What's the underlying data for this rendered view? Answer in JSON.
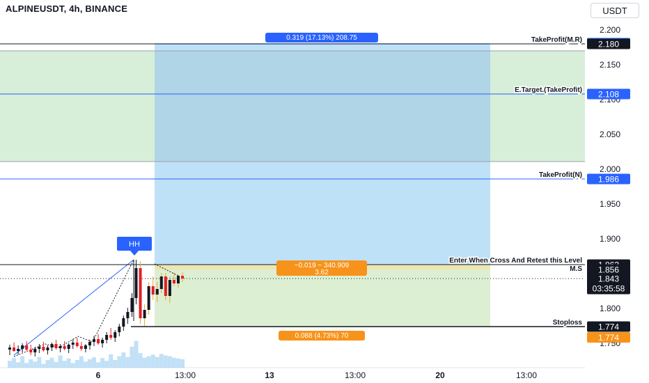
{
  "header": {
    "title": "ALPINEUSDT, 4h, BINANCE",
    "currency": "USDT"
  },
  "chart_data": {
    "type": "candlestick",
    "symbol": "ALPINEUSDT",
    "interval": "4h",
    "exchange": "BINANCE",
    "ylim": [
      1.725,
      2.205
    ],
    "y_ticks": [
      "2.200",
      "2.150",
      "2.100",
      "2.050",
      "2.000",
      "1.950",
      "1.900",
      "1.850",
      "1.800",
      "1.750"
    ],
    "x_ticks": [
      "6",
      "13:00",
      "13",
      "13:00",
      "20",
      "13:00"
    ],
    "levels": [
      {
        "label": "TakeProfit(M.R)",
        "value": 2.18,
        "price_label": "2.180",
        "color": "#131722"
      },
      {
        "label": "E.Target.(TakeProfit)",
        "value": 2.108,
        "price_label": "2.108",
        "color": "#2962ff"
      },
      {
        "label": "TakeProfit(N)",
        "value": 1.986,
        "price_label": "1.986",
        "color": "#2962ff"
      },
      {
        "label": "Enter When Cross And Retest this Level",
        "value": 1.863,
        "price_label": "1.863",
        "color": "#131722"
      },
      {
        "label": "M.S",
        "value": 1.856,
        "price_label": "1.856",
        "color": "#131722"
      },
      {
        "label": "Stoploss",
        "value": 1.774,
        "price_label": "1.774",
        "color": "#131722"
      }
    ],
    "price_tags": [
      {
        "text": "2.181",
        "value": 2.181,
        "color": "#2962ff"
      },
      {
        "text": "1.862",
        "value": 1.862,
        "color": "#131722"
      },
      {
        "text": "1.774",
        "value": 1.774,
        "color": "#f7931a"
      }
    ],
    "last_price": {
      "value": 1.843,
      "text": "1.843",
      "countdown": "03:35:58"
    },
    "zones": [
      {
        "name": "green-target-zone",
        "from": 2.011,
        "to": 2.17,
        "color": "#d7efd9"
      },
      {
        "name": "blue-profit-zone",
        "from": 1.863,
        "to": 2.181,
        "color": "#b3dcf7"
      },
      {
        "name": "green-risk-zone",
        "from": 1.774,
        "to": 1.863,
        "color": "#dcefd3"
      }
    ],
    "labels": {
      "profit": "0.319 (17.13%) 208.75",
      "entry_line1": "−0.019 ~ 340.909",
      "entry_line2": "3.62",
      "stop": "0.088 (4.73%) 70",
      "hh": "HH"
    },
    "candles": [
      {
        "o": 1.741,
        "h": 1.748,
        "l": 1.733,
        "c": 1.744
      },
      {
        "o": 1.744,
        "h": 1.751,
        "l": 1.738,
        "c": 1.739
      },
      {
        "o": 1.739,
        "h": 1.747,
        "l": 1.734,
        "c": 1.742
      },
      {
        "o": 1.742,
        "h": 1.75,
        "l": 1.737,
        "c": 1.747
      },
      {
        "o": 1.747,
        "h": 1.753,
        "l": 1.739,
        "c": 1.741
      },
      {
        "o": 1.741,
        "h": 1.748,
        "l": 1.733,
        "c": 1.737
      },
      {
        "o": 1.737,
        "h": 1.745,
        "l": 1.731,
        "c": 1.742
      },
      {
        "o": 1.742,
        "h": 1.749,
        "l": 1.736,
        "c": 1.745
      },
      {
        "o": 1.745,
        "h": 1.752,
        "l": 1.738,
        "c": 1.74
      },
      {
        "o": 1.74,
        "h": 1.747,
        "l": 1.734,
        "c": 1.744
      },
      {
        "o": 1.744,
        "h": 1.751,
        "l": 1.739,
        "c": 1.749
      },
      {
        "o": 1.749,
        "h": 1.755,
        "l": 1.741,
        "c": 1.743
      },
      {
        "o": 1.743,
        "h": 1.749,
        "l": 1.737,
        "c": 1.746
      },
      {
        "o": 1.746,
        "h": 1.753,
        "l": 1.74,
        "c": 1.742
      },
      {
        "o": 1.742,
        "h": 1.75,
        "l": 1.736,
        "c": 1.748
      },
      {
        "o": 1.748,
        "h": 1.756,
        "l": 1.742,
        "c": 1.751
      },
      {
        "o": 1.751,
        "h": 1.758,
        "l": 1.744,
        "c": 1.746
      },
      {
        "o": 1.746,
        "h": 1.752,
        "l": 1.739,
        "c": 1.742
      },
      {
        "o": 1.742,
        "h": 1.749,
        "l": 1.737,
        "c": 1.747
      },
      {
        "o": 1.747,
        "h": 1.755,
        "l": 1.741,
        "c": 1.752
      },
      {
        "o": 1.752,
        "h": 1.761,
        "l": 1.746,
        "c": 1.756
      },
      {
        "o": 1.756,
        "h": 1.763,
        "l": 1.748,
        "c": 1.75
      },
      {
        "o": 1.75,
        "h": 1.758,
        "l": 1.744,
        "c": 1.755
      },
      {
        "o": 1.755,
        "h": 1.766,
        "l": 1.75,
        "c": 1.762
      },
      {
        "o": 1.762,
        "h": 1.772,
        "l": 1.755,
        "c": 1.758
      },
      {
        "o": 1.758,
        "h": 1.769,
        "l": 1.752,
        "c": 1.766
      },
      {
        "o": 1.766,
        "h": 1.778,
        "l": 1.76,
        "c": 1.774
      },
      {
        "o": 1.774,
        "h": 1.79,
        "l": 1.768,
        "c": 1.786
      },
      {
        "o": 1.786,
        "h": 1.801,
        "l": 1.778,
        "c": 1.795
      },
      {
        "o": 1.795,
        "h": 1.822,
        "l": 1.788,
        "c": 1.815
      },
      {
        "o": 1.815,
        "h": 1.87,
        "l": 1.806,
        "c": 1.858
      },
      {
        "o": 1.858,
        "h": 1.868,
        "l": 1.778,
        "c": 1.786
      },
      {
        "o": 1.786,
        "h": 1.806,
        "l": 1.775,
        "c": 1.798
      },
      {
        "o": 1.798,
        "h": 1.838,
        "l": 1.791,
        "c": 1.832
      },
      {
        "o": 1.832,
        "h": 1.846,
        "l": 1.812,
        "c": 1.82
      },
      {
        "o": 1.82,
        "h": 1.838,
        "l": 1.809,
        "c": 1.828
      },
      {
        "o": 1.828,
        "h": 1.851,
        "l": 1.822,
        "c": 1.846
      },
      {
        "o": 1.846,
        "h": 1.851,
        "l": 1.812,
        "c": 1.818
      },
      {
        "o": 1.818,
        "h": 1.846,
        "l": 1.808,
        "c": 1.841
      },
      {
        "o": 1.841,
        "h": 1.852,
        "l": 1.832,
        "c": 1.836
      },
      {
        "o": 1.836,
        "h": 1.849,
        "l": 1.83,
        "c": 1.847
      },
      {
        "o": 1.847,
        "h": 1.852,
        "l": 1.838,
        "c": 1.843
      }
    ],
    "volume": [
      18,
      25,
      14,
      30,
      12,
      22,
      16,
      28,
      10,
      20,
      26,
      15,
      32,
      18,
      24,
      12,
      20,
      30,
      16,
      22,
      27,
      14,
      25,
      18,
      35,
      20,
      30,
      40,
      28,
      55,
      70,
      38,
      26,
      30,
      34,
      28,
      36,
      32,
      30,
      26,
      24,
      22
    ]
  }
}
